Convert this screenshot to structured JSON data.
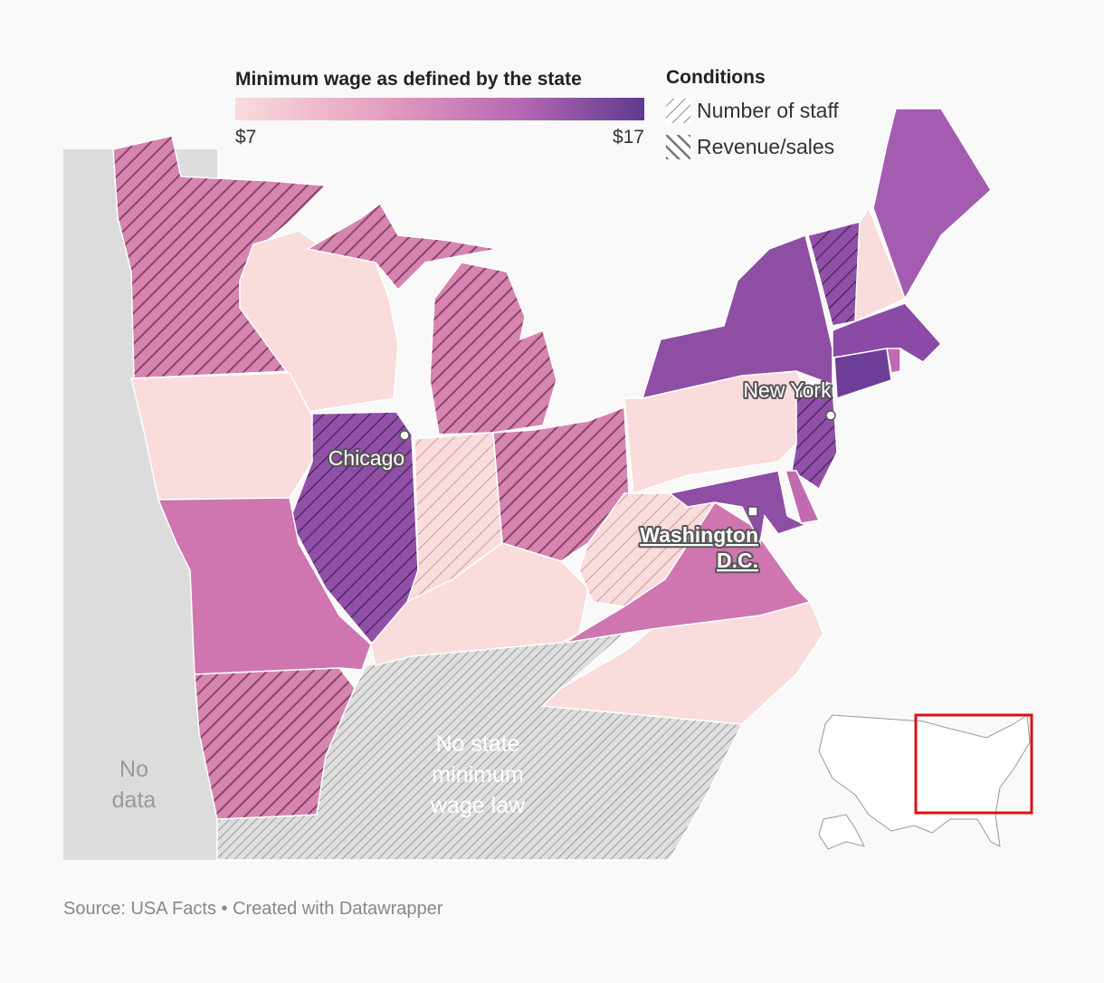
{
  "legend": {
    "title": "Minimum wage as defined by the state",
    "min_label": "$7",
    "max_label": "$17"
  },
  "conditions": {
    "title": "Conditions",
    "items": [
      "Number of staff",
      "Revenue/sales"
    ]
  },
  "cities": [
    {
      "label": "Chicago"
    },
    {
      "label": "New York"
    },
    {
      "label": [
        "Washington",
        "D.C."
      ]
    }
  ],
  "annotations": {
    "no_law": [
      "No state",
      "minimum",
      "wage law"
    ],
    "no_data": [
      "No",
      "data"
    ]
  },
  "footer": {
    "source": "Source: USA Facts • Created with Datawrapper"
  }
}
